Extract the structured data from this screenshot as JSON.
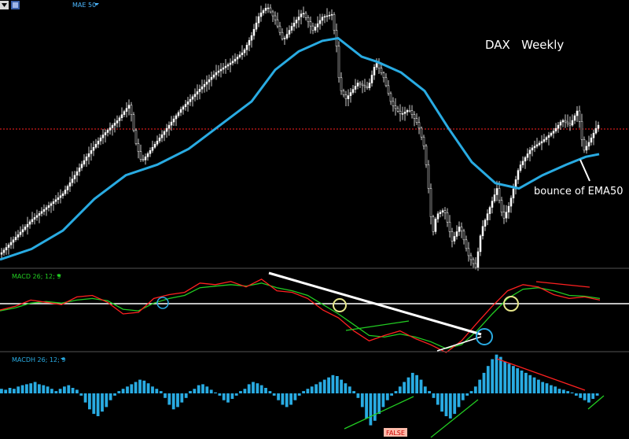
{
  "toolbar": {
    "menu_icon": "dropdown-arrow-icon",
    "settings_icon": "chart-settings-icon"
  },
  "chart_data": [
    {
      "type": "line",
      "panel": "price",
      "title": "DAX   Weekly",
      "indicator_label": "MAE 50",
      "annotation": "bounce of EMA50",
      "colors": {
        "ema": "#29abe2",
        "candles": "#ffffff",
        "resistance_line": "#ff2020"
      },
      "price_path": [
        [
          0,
          0.95
        ],
        [
          40,
          0.82
        ],
        [
          80,
          0.72
        ],
        [
          110,
          0.58
        ],
        [
          130,
          0.5
        ],
        [
          150,
          0.44
        ],
        [
          165,
          0.38
        ],
        [
          172,
          0.52
        ],
        [
          180,
          0.6
        ],
        [
          200,
          0.52
        ],
        [
          230,
          0.4
        ],
        [
          255,
          0.32
        ],
        [
          275,
          0.26
        ],
        [
          295,
          0.22
        ],
        [
          310,
          0.18
        ],
        [
          320,
          0.12
        ],
        [
          330,
          0.04
        ],
        [
          340,
          0.01
        ],
        [
          350,
          0.06
        ],
        [
          360,
          0.14
        ],
        [
          372,
          0.08
        ],
        [
          385,
          0.03
        ],
        [
          398,
          0.1
        ],
        [
          410,
          0.05
        ],
        [
          422,
          0.04
        ],
        [
          428,
          0.16
        ],
        [
          432,
          0.32
        ],
        [
          440,
          0.36
        ],
        [
          455,
          0.3
        ],
        [
          468,
          0.32
        ],
        [
          478,
          0.22
        ],
        [
          488,
          0.28
        ],
        [
          498,
          0.38
        ],
        [
          510,
          0.42
        ],
        [
          520,
          0.4
        ],
        [
          532,
          0.46
        ],
        [
          540,
          0.55
        ],
        [
          545,
          0.7
        ],
        [
          550,
          0.88
        ],
        [
          555,
          0.8
        ],
        [
          565,
          0.78
        ],
        [
          575,
          0.9
        ],
        [
          585,
          0.84
        ],
        [
          595,
          0.95
        ],
        [
          605,
          1.0
        ],
        [
          612,
          0.86
        ],
        [
          622,
          0.78
        ],
        [
          632,
          0.7
        ],
        [
          640,
          0.82
        ],
        [
          648,
          0.76
        ],
        [
          660,
          0.62
        ],
        [
          675,
          0.55
        ],
        [
          690,
          0.52
        ],
        [
          705,
          0.48
        ],
        [
          715,
          0.44
        ],
        [
          725,
          0.46
        ],
        [
          735,
          0.4
        ],
        [
          742,
          0.56
        ],
        [
          750,
          0.52
        ],
        [
          760,
          0.46
        ]
      ],
      "ema_path": [
        [
          0,
          0.97
        ],
        [
          40,
          0.93
        ],
        [
          80,
          0.86
        ],
        [
          120,
          0.74
        ],
        [
          160,
          0.65
        ],
        [
          200,
          0.61
        ],
        [
          240,
          0.55
        ],
        [
          280,
          0.46
        ],
        [
          320,
          0.37
        ],
        [
          350,
          0.25
        ],
        [
          380,
          0.18
        ],
        [
          410,
          0.14
        ],
        [
          430,
          0.13
        ],
        [
          460,
          0.2
        ],
        [
          480,
          0.22
        ],
        [
          510,
          0.26
        ],
        [
          540,
          0.33
        ],
        [
          570,
          0.47
        ],
        [
          600,
          0.6
        ],
        [
          630,
          0.68
        ],
        [
          660,
          0.7
        ],
        [
          690,
          0.65
        ],
        [
          720,
          0.61
        ],
        [
          745,
          0.58
        ],
        [
          762,
          0.57
        ]
      ]
    },
    {
      "type": "line",
      "panel": "macd",
      "indicator_label": "MACD 26; 12; 9",
      "colors": {
        "macd": "#ff2020",
        "signal": "#22cc22",
        "zero_line": "#ffffff",
        "trendline": "#ffffff",
        "circle_bull": "#29abe2",
        "circle_cross": "#e6e68a"
      },
      "series": [
        {
          "values": [
            0.45,
            0.4,
            0.32,
            0.35,
            0.38,
            0.28,
            0.26,
            0.35,
            0.5,
            0.48,
            0.3,
            0.25,
            0.22,
            0.1,
            0.12,
            0.08,
            0.15,
            0.05,
            0.2,
            0.22,
            0.3,
            0.45,
            0.55,
            0.72,
            0.85,
            0.78,
            0.72,
            0.82,
            0.9,
            1.0,
            0.85,
            0.62,
            0.4,
            0.2,
            0.12,
            0.15,
            0.25,
            0.3,
            0.28,
            0.32
          ]
        },
        {
          "values": [
            0.46,
            0.42,
            0.36,
            0.34,
            0.36,
            0.32,
            0.3,
            0.33,
            0.44,
            0.46,
            0.36,
            0.3,
            0.26,
            0.16,
            0.14,
            0.12,
            0.14,
            0.1,
            0.16,
            0.2,
            0.26,
            0.38,
            0.5,
            0.64,
            0.78,
            0.8,
            0.76,
            0.8,
            0.86,
            0.95,
            0.9,
            0.72,
            0.5,
            0.3,
            0.18,
            0.16,
            0.2,
            0.26,
            0.27,
            0.3
          ]
        }
      ]
    },
    {
      "type": "bar",
      "panel": "histogram",
      "indicator_label": "MACDH 26; 12; 9",
      "annotation": "FALSE",
      "colors": {
        "bars": "#29abe2",
        "divergence": "#22cc22",
        "bearish_divergence": "#ff2020",
        "false_box": "#ffbbaa"
      },
      "values": [
        0.1,
        0.08,
        0.12,
        0.1,
        0.15,
        0.18,
        0.2,
        0.22,
        0.25,
        0.2,
        0.18,
        0.15,
        0.1,
        0.05,
        0.1,
        0.15,
        0.18,
        0.12,
        0.08,
        -0.05,
        -0.2,
        -0.35,
        -0.45,
        -0.5,
        -0.4,
        -0.3,
        -0.15,
        -0.05,
        0.05,
        0.1,
        0.15,
        0.2,
        0.25,
        0.3,
        0.28,
        0.22,
        0.15,
        0.1,
        0.05,
        -0.1,
        -0.25,
        -0.35,
        -0.3,
        -0.2,
        -0.1,
        0.05,
        0.1,
        0.18,
        0.2,
        0.15,
        0.08,
        0.02,
        -0.05,
        -0.15,
        -0.2,
        -0.12,
        -0.05,
        0.05,
        0.1,
        0.2,
        0.25,
        0.22,
        0.18,
        0.12,
        0.05,
        -0.05,
        -0.15,
        -0.25,
        -0.3,
        -0.25,
        -0.15,
        -0.05,
        0.05,
        0.1,
        0.15,
        0.2,
        0.25,
        0.3,
        0.35,
        0.4,
        0.38,
        0.3,
        0.22,
        0.15,
        0.05,
        -0.1,
        -0.3,
        -0.55,
        -0.7,
        -0.6,
        -0.45,
        -0.3,
        -0.15,
        -0.05,
        0.05,
        0.15,
        0.25,
        0.35,
        0.45,
        0.4,
        0.3,
        0.15,
        0.05,
        -0.1,
        -0.25,
        -0.4,
        -0.5,
        -0.55,
        -0.45,
        -0.3,
        -0.15,
        -0.05,
        0.05,
        0.15,
        0.3,
        0.45,
        0.6,
        0.75,
        0.85,
        0.8,
        0.7,
        0.65,
        0.6,
        0.55,
        0.5,
        0.45,
        0.4,
        0.35,
        0.3,
        0.25,
        0.22,
        0.18,
        0.15,
        0.1,
        0.08,
        0.05,
        0.02,
        -0.05,
        -0.1,
        -0.15,
        -0.2,
        -0.12,
        -0.05
      ]
    }
  ]
}
